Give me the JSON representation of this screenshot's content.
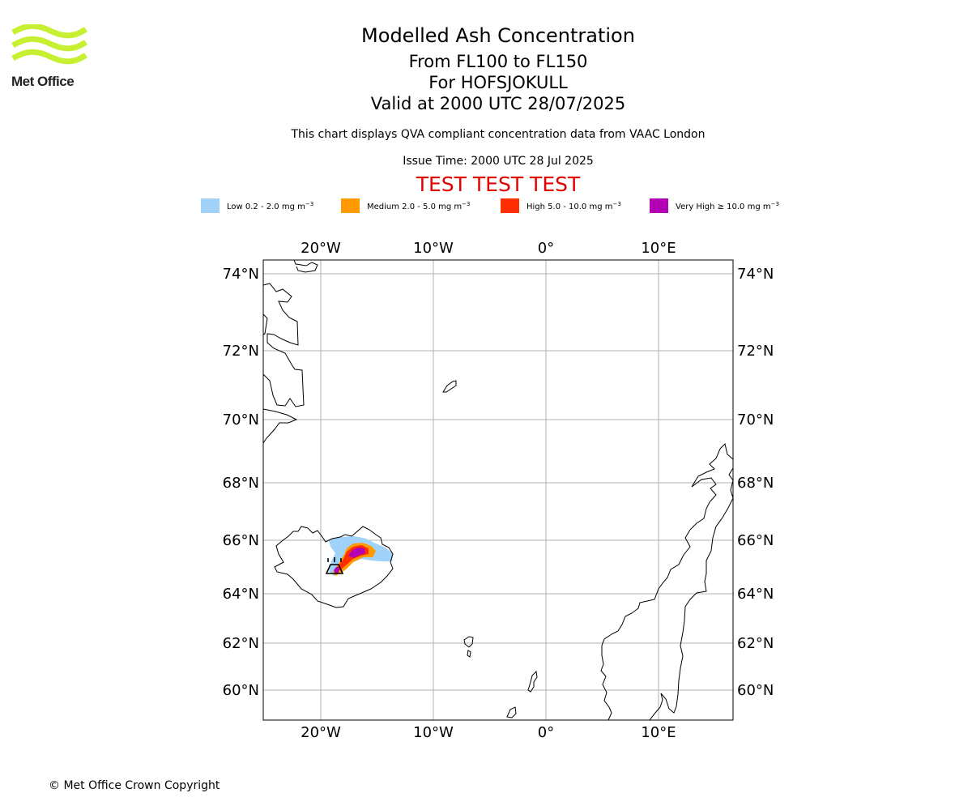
{
  "header": {
    "title": "Modelled Ash Concentration",
    "levels": "From FL100 to FL150",
    "volcano": "For HOFSJOKULL",
    "valid": "Valid at 2000 UTC 28/07/2025",
    "description": "This chart displays QVA compliant concentration data from VAAC London",
    "issue_time": "Issue Time: 2000 UTC 28 Jul 2025",
    "test_banner": "TEST TEST TEST"
  },
  "logo": {
    "text": "Met Office",
    "color": "#c8f032",
    "icon": "met-office-waves-logo"
  },
  "legend": [
    {
      "label": "Low 0.2 - 2.0 mg m",
      "sup": "−3",
      "color": "#a0d2fa"
    },
    {
      "label": "Medium 2.0 - 5.0 mg m",
      "sup": "−3",
      "color": "#ff9b00"
    },
    {
      "label": "High 5.0 - 10.0 mg m",
      "sup": "−3",
      "color": "#ff2d00"
    },
    {
      "label": "Very High  ≥  10.0 mg m",
      "sup": "−3",
      "color": "#b400b4"
    }
  ],
  "map": {
    "lon_ticks": [
      "20°W",
      "10°W",
      "0°",
      "10°E"
    ],
    "lat_ticks": [
      "74°N",
      "72°N",
      "70°N",
      "68°N",
      "66°N",
      "64°N",
      "62°N",
      "60°N"
    ],
    "extent": {
      "lon": [
        -25,
        16.8
      ],
      "lat": [
        59,
        74.5
      ]
    },
    "gridlines": true,
    "volcano_marker": "volcano-symbol"
  },
  "footer": {
    "copyright": "© Met Office Crown Copyright"
  }
}
